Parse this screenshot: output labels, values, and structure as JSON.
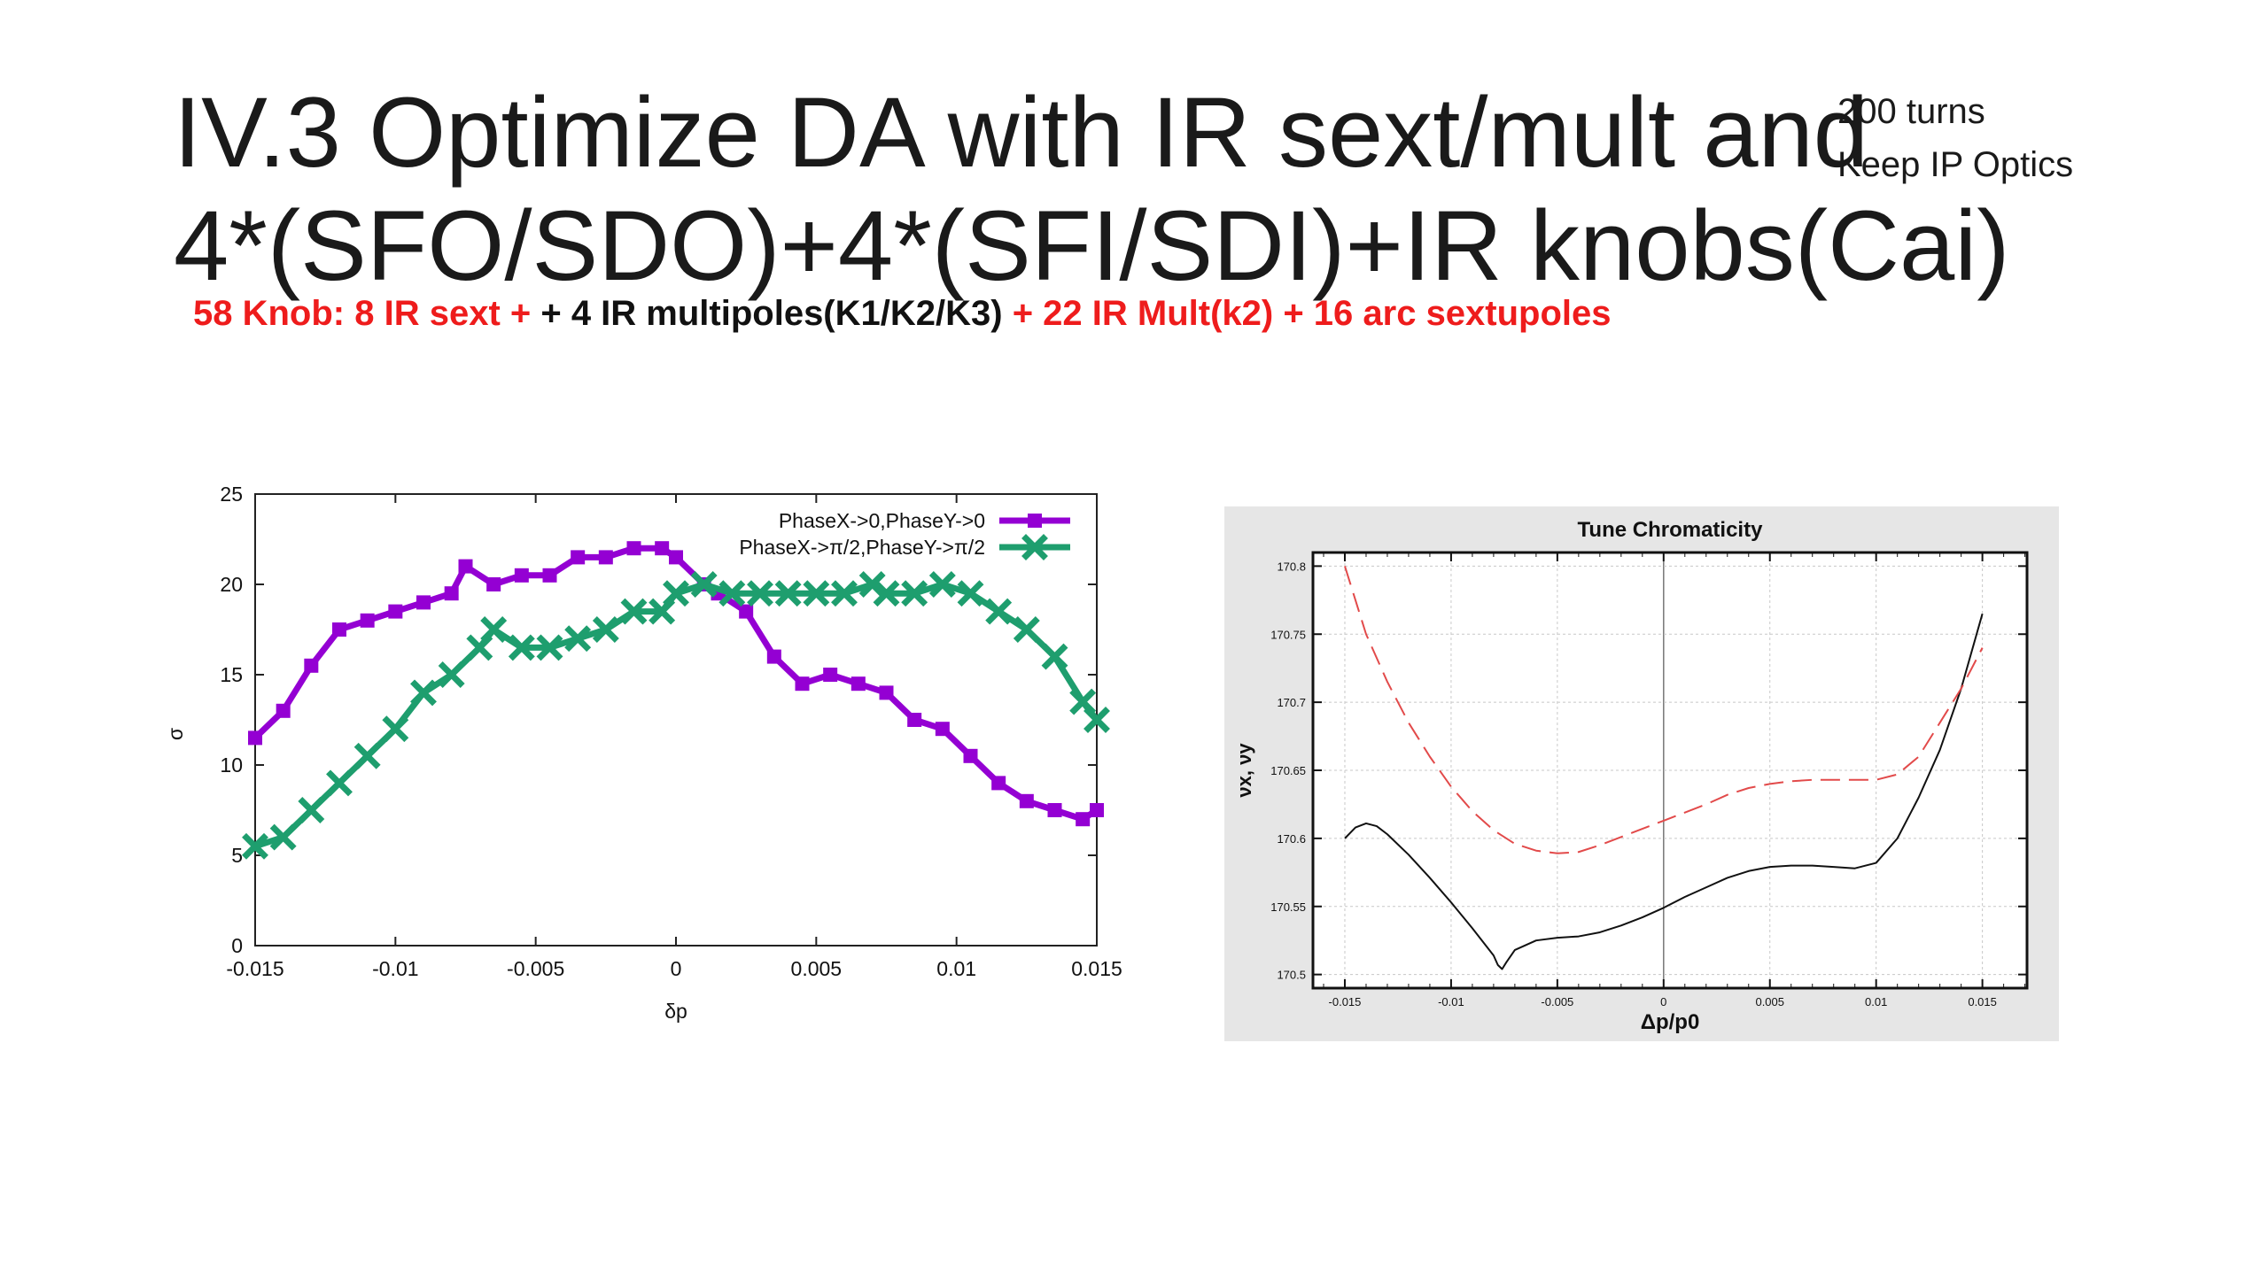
{
  "slide": {
    "title_line1": "IV.3 Optimize DA with IR sext/mult and",
    "title_line2": "4*(SFO/SDO)+4*(SFI/SDI)+IR knobs(Cai)",
    "note_line1": "200 turns",
    "note_line2": "Keep IP Optics",
    "subtitle_parts": [
      {
        "text": "58 Knob: 8 IR sext + ",
        "color": "#ee1c1c"
      },
      {
        "text": "+ 4 IR multipoles(K1/K2/K3) ",
        "color": "#111111"
      },
      {
        "text": "+ 22 IR Mult(k2) + 16 arc sextupoles",
        "color": "#ee1c1c"
      }
    ]
  },
  "chart_data": [
    {
      "type": "line",
      "title": "",
      "xlabel": "δp",
      "ylabel": "σ",
      "xlim": [
        -0.015,
        0.015
      ],
      "ylim": [
        0,
        25
      ],
      "xticks": [
        -0.015,
        -0.01,
        -0.005,
        0,
        0.005,
        0.01,
        0.015
      ],
      "xtick_labels": [
        "-0.015",
        "-0.01",
        "-0.005",
        "0",
        "0.005",
        "0.01",
        "0.015"
      ],
      "yticks": [
        0,
        5,
        10,
        15,
        20,
        25
      ],
      "ytick_labels": [
        "0",
        "5",
        "10",
        "15",
        "20",
        "25"
      ],
      "legend_position": "top-right",
      "series": [
        {
          "name": "PhaseX->0,PhaseY->0",
          "color": "#9400d3",
          "marker": "square",
          "x": [
            -0.015,
            -0.014,
            -0.013,
            -0.012,
            -0.011,
            -0.01,
            -0.009,
            -0.008,
            -0.0075,
            -0.0065,
            -0.0055,
            -0.0045,
            -0.0035,
            -0.0025,
            -0.0015,
            -0.0005,
            0,
            0.001,
            0.0015,
            0.0025,
            0.0035,
            0.0045,
            0.0055,
            0.0065,
            0.0075,
            0.0085,
            0.0095,
            0.0105,
            0.0115,
            0.0125,
            0.0135,
            0.0145,
            0.015
          ],
          "y": [
            11.5,
            13,
            15.5,
            17.5,
            18,
            18.5,
            19,
            19.5,
            21,
            20,
            20.5,
            20.5,
            21.5,
            21.5,
            22,
            22,
            21.5,
            20,
            19.5,
            18.5,
            16,
            14.5,
            15,
            14.5,
            14,
            12.5,
            12,
            10.5,
            9,
            8,
            7.5,
            7,
            7.5
          ]
        },
        {
          "name": "PhaseX->π/2,PhaseY->π/2",
          "color": "#1e9e6e",
          "marker": "cross",
          "x": [
            -0.015,
            -0.014,
            -0.013,
            -0.012,
            -0.011,
            -0.01,
            -0.009,
            -0.008,
            -0.007,
            -0.0065,
            -0.0055,
            -0.0045,
            -0.0035,
            -0.0025,
            -0.0015,
            -0.0005,
            0,
            0.001,
            0.002,
            0.003,
            0.004,
            0.005,
            0.006,
            0.007,
            0.0075,
            0.0085,
            0.0095,
            0.0105,
            0.0115,
            0.0125,
            0.0135,
            0.0145,
            0.015
          ],
          "y": [
            5.5,
            6,
            7.5,
            9,
            10.5,
            12,
            14,
            15,
            16.5,
            17.5,
            16.5,
            16.5,
            17,
            17.5,
            18.5,
            18.5,
            19.5,
            20,
            19.5,
            19.5,
            19.5,
            19.5,
            19.5,
            20,
            19.5,
            19.5,
            20,
            19.5,
            18.5,
            17.5,
            16,
            13.5,
            12.5
          ]
        }
      ]
    },
    {
      "type": "line",
      "title": "Tune Chromaticity",
      "xlabel": "Δp/p0",
      "ylabel": "νx, νy",
      "xlim": [
        -0.0165,
        0.0171
      ],
      "ylim": [
        170.49,
        170.81
      ],
      "xticks": [
        -0.015,
        -0.01,
        -0.005,
        0,
        0.005,
        0.01,
        0.015
      ],
      "xtick_labels": [
        "-0.015",
        "-0.01",
        "-0.005",
        "0",
        "0.005",
        "0.01",
        "0.015"
      ],
      "yticks": [
        170.5,
        170.55,
        170.6,
        170.65,
        170.7,
        170.75,
        170.8
      ],
      "ytick_labels": [
        "170.5",
        "170.55",
        "170.6",
        "170.65",
        "170.7",
        "170.75",
        "170.8"
      ],
      "grid": true,
      "series": [
        {
          "name": "",
          "color": "#111111",
          "dash": "solid",
          "x": [
            -0.015,
            -0.0145,
            -0.014,
            -0.0135,
            -0.013,
            -0.012,
            -0.011,
            -0.01,
            -0.009,
            -0.008,
            -0.0078,
            -0.0076,
            -0.0074,
            -0.007,
            -0.006,
            -0.005,
            -0.004,
            -0.003,
            -0.002,
            -0.001,
            0,
            0.001,
            0.002,
            0.003,
            0.004,
            0.005,
            0.006,
            0.007,
            0.008,
            0.009,
            0.01,
            0.011,
            0.012,
            0.013,
            0.014,
            0.015
          ],
          "y": [
            170.6,
            170.608,
            170.611,
            170.609,
            170.603,
            170.588,
            170.571,
            170.553,
            170.534,
            170.514,
            170.507,
            170.504,
            170.509,
            170.518,
            170.525,
            170.527,
            170.528,
            170.531,
            170.536,
            170.542,
            170.549,
            170.557,
            170.564,
            170.571,
            170.576,
            170.579,
            170.58,
            170.58,
            170.579,
            170.578,
            170.582,
            170.6,
            170.63,
            170.665,
            170.71,
            170.765
          ]
        },
        {
          "name": "",
          "color": "#e24a4a",
          "dash": "dashed",
          "x": [
            -0.015,
            -0.0145,
            -0.014,
            -0.013,
            -0.012,
            -0.011,
            -0.01,
            -0.009,
            -0.008,
            -0.007,
            -0.006,
            -0.005,
            -0.004,
            -0.003,
            -0.002,
            -0.001,
            0,
            0.001,
            0.002,
            0.003,
            0.004,
            0.005,
            0.006,
            0.007,
            0.008,
            0.009,
            0.01,
            0.011,
            0.012,
            0.013,
            0.014,
            0.015
          ],
          "y": [
            170.8,
            170.775,
            170.75,
            170.715,
            170.685,
            170.66,
            170.638,
            170.62,
            170.606,
            170.596,
            170.591,
            170.589,
            170.59,
            170.595,
            170.601,
            170.607,
            170.613,
            170.619,
            170.625,
            170.632,
            170.637,
            170.64,
            170.642,
            170.643,
            170.643,
            170.643,
            170.643,
            170.647,
            170.66,
            170.685,
            170.71,
            170.74
          ]
        }
      ]
    }
  ]
}
